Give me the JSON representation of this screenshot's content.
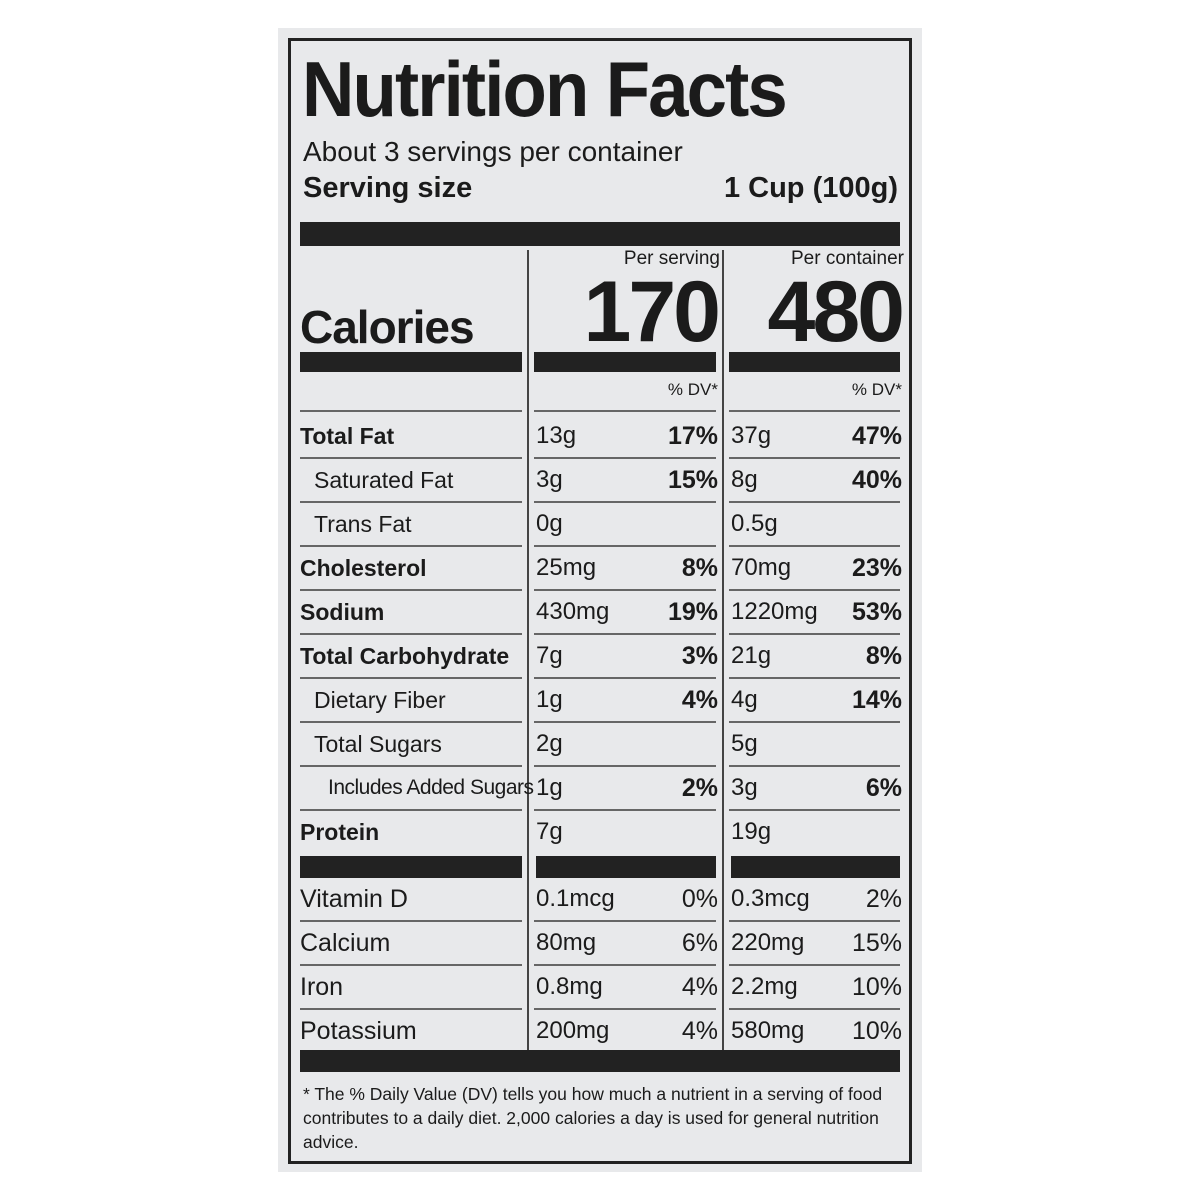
{
  "label": {
    "title": "Nutrition Facts",
    "servings": "About 3 servings per container",
    "serving_size_label": "Serving size",
    "serving_size_value": "1 Cup (100g)",
    "calories_label": "Calories",
    "columns": [
      {
        "heading": "Per serving",
        "calories": 170,
        "dv_heading": "% DV*"
      },
      {
        "heading": "Per container",
        "calories": 480,
        "dv_heading": "% DV*"
      }
    ],
    "nutrients": [
      {
        "name": "Total Fat",
        "bold": true,
        "indent": 0,
        "cells": [
          {
            "amount": "13g",
            "dv": "17%"
          },
          {
            "amount": "37g",
            "dv": "47%"
          }
        ]
      },
      {
        "name": "Saturated Fat",
        "bold": false,
        "indent": 1,
        "cells": [
          {
            "amount": "3g",
            "dv": "15%"
          },
          {
            "amount": "8g",
            "dv": "40%"
          }
        ]
      },
      {
        "name": "Trans Fat",
        "bold": false,
        "indent": 1,
        "cells": [
          {
            "amount": "0g",
            "dv": null
          },
          {
            "amount": "0.5g",
            "dv": null
          }
        ]
      },
      {
        "name": "Cholesterol",
        "bold": true,
        "indent": 0,
        "cells": [
          {
            "amount": "25mg",
            "dv": "8%"
          },
          {
            "amount": "70mg",
            "dv": "23%"
          }
        ]
      },
      {
        "name": "Sodium",
        "bold": true,
        "indent": 0,
        "cells": [
          {
            "amount": "430mg",
            "dv": "19%"
          },
          {
            "amount": "1220mg",
            "dv": "53%"
          }
        ]
      },
      {
        "name": "Total Carbohydrate",
        "bold": true,
        "indent": 0,
        "cells": [
          {
            "amount": "7g",
            "dv": "3%"
          },
          {
            "amount": "21g",
            "dv": "8%"
          }
        ]
      },
      {
        "name": "Dietary Fiber",
        "bold": false,
        "indent": 1,
        "cells": [
          {
            "amount": "1g",
            "dv": "4%"
          },
          {
            "amount": "4g",
            "dv": "14%"
          }
        ]
      },
      {
        "name": "Total Sugars",
        "bold": false,
        "indent": 1,
        "cells": [
          {
            "amount": "2g",
            "dv": null
          },
          {
            "amount": "5g",
            "dv": null
          }
        ]
      },
      {
        "name": "Includes Added Sugars",
        "bold": false,
        "indent": 2,
        "cells": [
          {
            "amount": "1g",
            "dv": "2%"
          },
          {
            "amount": "3g",
            "dv": "6%"
          }
        ]
      },
      {
        "name": "Protein",
        "bold": true,
        "indent": 0,
        "cells": [
          {
            "amount": "7g",
            "dv": null
          },
          {
            "amount": "19g",
            "dv": null
          }
        ]
      }
    ],
    "vitamins": [
      {
        "name": "Vitamin D",
        "cells": [
          {
            "amount": "0.1mcg",
            "dv": "0%"
          },
          {
            "amount": "0.3mcg",
            "dv": "2%"
          }
        ]
      },
      {
        "name": "Calcium",
        "cells": [
          {
            "amount": "80mg",
            "dv": "6%"
          },
          {
            "amount": "220mg",
            "dv": "15%"
          }
        ]
      },
      {
        "name": "Iron",
        "cells": [
          {
            "amount": "0.8mg",
            "dv": "4%"
          },
          {
            "amount": "2.2mg",
            "dv": "10%"
          }
        ]
      },
      {
        "name": "Potassium",
        "cells": [
          {
            "amount": "200mg",
            "dv": "4%"
          },
          {
            "amount": "580mg",
            "dv": "10%"
          }
        ]
      }
    ],
    "footnote": "* The % Daily Value (DV) tells you how much a nutrient in a serving of food contributes to a daily diet. 2,000 calories a day is used for general nutrition advice."
  }
}
